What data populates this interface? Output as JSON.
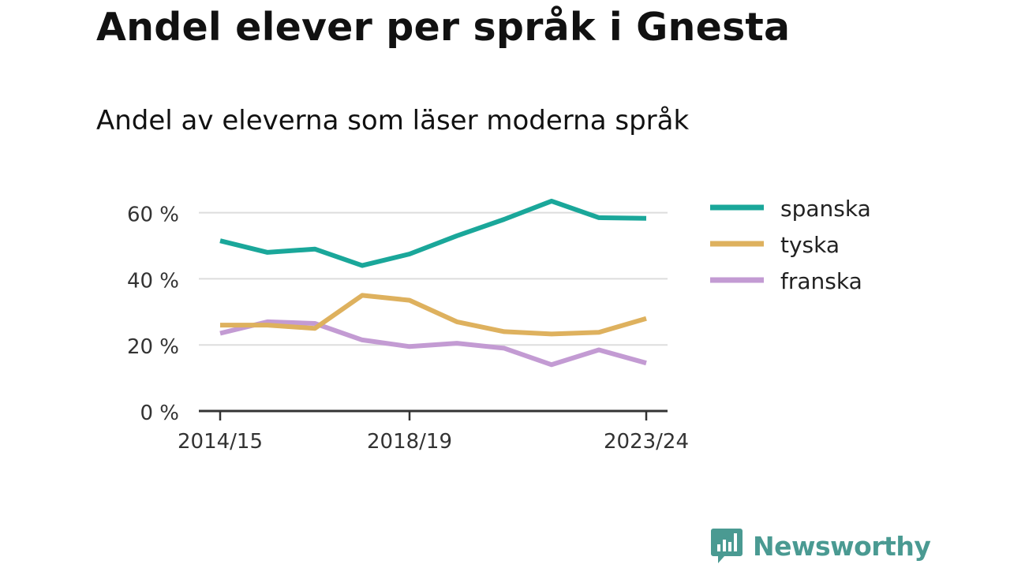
{
  "title": "Andel elever per språk i Gnesta",
  "subtitle": "Andel av eleverna som läser moderna språk",
  "brand": "Newsworthy",
  "chart_data": {
    "type": "line",
    "x": [
      "2014/15",
      "2015/16",
      "2016/17",
      "2017/18",
      "2018/19",
      "2019/20",
      "2020/21",
      "2021/22",
      "2022/23",
      "2023/24"
    ],
    "x_tick_labels": [
      "2014/15",
      "2018/19",
      "2023/24"
    ],
    "y_ticks": [
      0,
      20,
      40,
      60
    ],
    "y_tick_labels": [
      "0 %",
      "20 %",
      "40 %",
      "60 %"
    ],
    "ylim": [
      0,
      65
    ],
    "grid": true,
    "legend_position": "right",
    "series": [
      {
        "name": "spanska",
        "color": "#1aa79a",
        "values": [
          51.5,
          48,
          49,
          44,
          47.5,
          53,
          58,
          63.5,
          58.5,
          58.3
        ]
      },
      {
        "name": "tyska",
        "color": "#deb15e",
        "values": [
          26,
          26,
          25,
          35,
          33.5,
          27,
          24,
          23.3,
          23.8,
          28
        ]
      },
      {
        "name": "franska",
        "color": "#c39bd3",
        "values": [
          23.5,
          27,
          26.5,
          21.5,
          19.5,
          20.5,
          19,
          14,
          18.5,
          14.5
        ]
      }
    ]
  }
}
